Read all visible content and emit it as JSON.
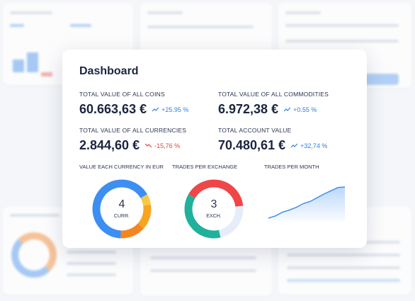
{
  "title": "Dashboard",
  "stats": [
    {
      "label": "TOTAL VALUE OF ALL COINS",
      "value": "60.663,63 €",
      "change": "+25.95 %",
      "trend": "up",
      "color": "#2f7fe0"
    },
    {
      "label": "TOTAL VALUE OF ALL COMMODITIES",
      "value": "6.972,38 €",
      "change": "+0.55 %",
      "trend": "up",
      "color": "#2f7fe0"
    },
    {
      "label": "TOTAL VALUE OF ALL CURRENCIES",
      "value": "2.844,60 €",
      "change": "-15,76 %",
      "trend": "down",
      "color": "#e0453c"
    },
    {
      "label": "TOTAL ACCOUNT VALUE",
      "value": "70.480,61 €",
      "change": "+32,74 %",
      "trend": "up",
      "color": "#2f7fe0"
    }
  ],
  "charts": [
    {
      "type": "donut",
      "title": "VALUE EACH CURRENCY IN EUR",
      "center_value": "4",
      "center_label": "CURR.",
      "start_angle": -30,
      "segments": [
        {
          "value": 6,
          "color": "#f6c945"
        },
        {
          "value": 14,
          "color": "#f7a41f"
        },
        {
          "value": 14,
          "color": "#f5851f"
        },
        {
          "value": 66,
          "color": "#3d8ef2"
        }
      ]
    },
    {
      "type": "donut",
      "title": "TRADES PER EXCHANGE",
      "center_value": "3",
      "center_label": "EXCH.",
      "start_angle": -150,
      "segments": [
        {
          "value": 40,
          "color": "#ef4747"
        },
        {
          "value": 23,
          "color": "#e6edf8"
        },
        {
          "value": 37,
          "color": "#1fb19b"
        }
      ]
    },
    {
      "type": "area",
      "title": "TRADES PER MONTH",
      "color": "#3d8ef2",
      "values": [
        10,
        14,
        21,
        25,
        30,
        37,
        41,
        48,
        55,
        61,
        67,
        68
      ]
    }
  ]
}
